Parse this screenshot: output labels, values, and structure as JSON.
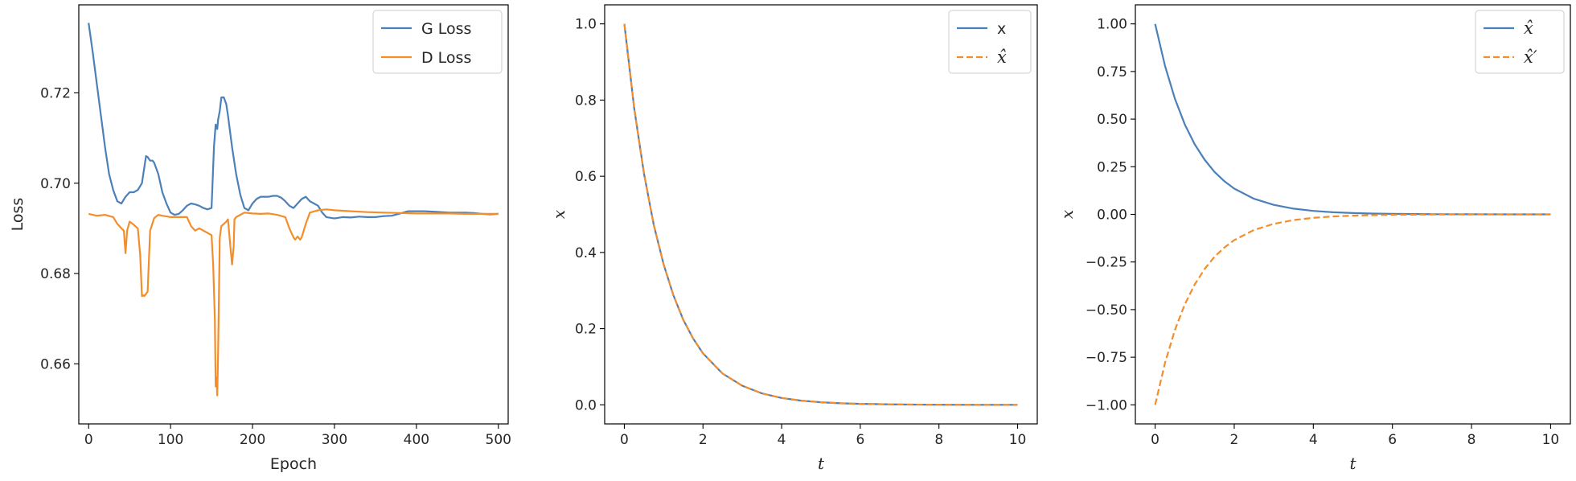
{
  "figure": {
    "panel_count": 3
  },
  "chart_data": [
    {
      "type": "line",
      "title": "",
      "xlabel": "Epoch",
      "ylabel": "Loss",
      "xlim": [
        -12,
        512
      ],
      "ylim": [
        0.6467,
        0.7395
      ],
      "xticks": [
        0,
        100,
        200,
        300,
        400,
        500
      ],
      "xtick_labels": [
        "0",
        "100",
        "200",
        "300",
        "400",
        "500"
      ],
      "yticks": [
        0.66,
        0.68,
        0.7,
        0.72
      ],
      "ytick_labels": [
        "0.66",
        "0.68",
        "0.70",
        "0.72"
      ],
      "grid": false,
      "legend": "top-right",
      "series": [
        {
          "name": "G Loss",
          "color": "#4c80b8",
          "style": "solid",
          "x": [
            0,
            5,
            10,
            15,
            20,
            25,
            30,
            35,
            40,
            45,
            50,
            55,
            60,
            65,
            70,
            72,
            75,
            78,
            80,
            85,
            90,
            95,
            100,
            105,
            110,
            115,
            120,
            125,
            130,
            135,
            140,
            145,
            150,
            153,
            155,
            157,
            158,
            160,
            162,
            165,
            168,
            170,
            175,
            180,
            185,
            190,
            195,
            200,
            205,
            210,
            215,
            220,
            225,
            230,
            235,
            240,
            245,
            250,
            255,
            260,
            265,
            270,
            275,
            280,
            285,
            290,
            300,
            310,
            320,
            330,
            340,
            350,
            360,
            370,
            380,
            390,
            400,
            410,
            420,
            430,
            440,
            450,
            460,
            470,
            480,
            490,
            500
          ],
          "y": [
            0.7355,
            0.729,
            0.722,
            0.715,
            0.708,
            0.702,
            0.6985,
            0.696,
            0.6955,
            0.697,
            0.698,
            0.698,
            0.6985,
            0.7,
            0.706,
            0.7058,
            0.705,
            0.705,
            0.7045,
            0.702,
            0.698,
            0.6955,
            0.6935,
            0.693,
            0.6932,
            0.694,
            0.695,
            0.6955,
            0.6953,
            0.695,
            0.6945,
            0.6942,
            0.6945,
            0.708,
            0.713,
            0.712,
            0.714,
            0.716,
            0.719,
            0.719,
            0.7175,
            0.715,
            0.708,
            0.702,
            0.6975,
            0.6945,
            0.694,
            0.6955,
            0.6965,
            0.697,
            0.697,
            0.697,
            0.6972,
            0.6972,
            0.6968,
            0.696,
            0.695,
            0.6945,
            0.6955,
            0.6965,
            0.697,
            0.696,
            0.6955,
            0.695,
            0.6935,
            0.6925,
            0.6922,
            0.6925,
            0.6924,
            0.6926,
            0.6925,
            0.6925,
            0.6927,
            0.6928,
            0.6933,
            0.6938,
            0.6938,
            0.6938,
            0.6937,
            0.6936,
            0.6935,
            0.6935,
            0.6935,
            0.6934,
            0.6932,
            0.6931,
            0.6932
          ]
        },
        {
          "name": "D Loss",
          "color": "#f28e2b",
          "style": "solid",
          "x": [
            0,
            10,
            20,
            30,
            35,
            40,
            43,
            45,
            47,
            50,
            55,
            60,
            63,
            65,
            67,
            68,
            70,
            72,
            75,
            80,
            85,
            90,
            100,
            110,
            120,
            125,
            130,
            135,
            140,
            145,
            150,
            152,
            154,
            155,
            156,
            157,
            158,
            159,
            160,
            162,
            165,
            168,
            170,
            172,
            175,
            177,
            178,
            180,
            185,
            190,
            200,
            210,
            220,
            230,
            240,
            245,
            250,
            252,
            255,
            258,
            260,
            265,
            270,
            280,
            290,
            300,
            320,
            340,
            360,
            380,
            400,
            420,
            440,
            460,
            480,
            500
          ],
          "y": [
            0.6932,
            0.6928,
            0.693,
            0.6925,
            0.691,
            0.69,
            0.6895,
            0.6845,
            0.6895,
            0.6915,
            0.6908,
            0.69,
            0.684,
            0.675,
            0.6752,
            0.675,
            0.6755,
            0.676,
            0.6895,
            0.6923,
            0.693,
            0.6928,
            0.6925,
            0.6925,
            0.6925,
            0.6905,
            0.6895,
            0.69,
            0.6895,
            0.689,
            0.6885,
            0.682,
            0.67,
            0.655,
            0.657,
            0.653,
            0.662,
            0.675,
            0.688,
            0.6905,
            0.691,
            0.6915,
            0.692,
            0.688,
            0.682,
            0.686,
            0.692,
            0.6925,
            0.693,
            0.6935,
            0.6933,
            0.6932,
            0.6933,
            0.693,
            0.6925,
            0.69,
            0.688,
            0.6875,
            0.6882,
            0.6875,
            0.688,
            0.691,
            0.6935,
            0.694,
            0.6942,
            0.694,
            0.6938,
            0.6936,
            0.6935,
            0.6934,
            0.6933,
            0.6933,
            0.6933,
            0.6932,
            0.6932,
            0.6932
          ]
        }
      ]
    },
    {
      "type": "line",
      "title": "",
      "xlabel": "t",
      "ylabel": "x",
      "xlim": [
        -0.5,
        10.5
      ],
      "ylim": [
        -0.05,
        1.05
      ],
      "xticks": [
        0,
        2,
        4,
        6,
        8,
        10
      ],
      "xtick_labels": [
        "0",
        "2",
        "4",
        "6",
        "8",
        "10"
      ],
      "yticks": [
        0.0,
        0.2,
        0.4,
        0.6,
        0.8,
        1.0
      ],
      "ytick_labels": [
        "0.0",
        "0.2",
        "0.4",
        "0.6",
        "0.8",
        "1.0"
      ],
      "grid": false,
      "legend": "top-right",
      "series": [
        {
          "name": "x",
          "color": "#4c80b8",
          "style": "solid",
          "x": [
            0,
            0.25,
            0.5,
            0.75,
            1,
            1.25,
            1.5,
            1.75,
            2,
            2.5,
            3,
            3.5,
            4,
            4.5,
            5,
            5.5,
            6,
            7,
            8,
            9,
            10
          ],
          "y": [
            1.0,
            0.779,
            0.607,
            0.472,
            0.368,
            0.287,
            0.223,
            0.174,
            0.135,
            0.082,
            0.05,
            0.03,
            0.018,
            0.011,
            0.0067,
            0.0041,
            0.0025,
            0.0009,
            0.0003,
            0.0001,
            0.0
          ]
        },
        {
          "name": "x̂",
          "color": "#f28e2b",
          "style": "dashed",
          "x": [
            0,
            0.25,
            0.5,
            0.75,
            1,
            1.25,
            1.5,
            1.75,
            2,
            2.5,
            3,
            3.5,
            4,
            4.5,
            5,
            5.5,
            6,
            7,
            8,
            9,
            10
          ],
          "y": [
            1.0,
            0.779,
            0.607,
            0.472,
            0.368,
            0.287,
            0.223,
            0.174,
            0.135,
            0.082,
            0.05,
            0.03,
            0.018,
            0.011,
            0.0067,
            0.0041,
            0.0025,
            0.0009,
            0.0003,
            0.0001,
            0.0
          ]
        }
      ]
    },
    {
      "type": "line",
      "title": "",
      "xlabel": "t",
      "ylabel": "x",
      "xlim": [
        -0.5,
        10.5
      ],
      "ylim": [
        -1.1,
        1.1
      ],
      "xticks": [
        0,
        2,
        4,
        6,
        8,
        10
      ],
      "xtick_labels": [
        "0",
        "2",
        "4",
        "6",
        "8",
        "10"
      ],
      "yticks": [
        -1.0,
        -0.75,
        -0.5,
        -0.25,
        0.0,
        0.25,
        0.5,
        0.75,
        1.0
      ],
      "ytick_labels": [
        "−1.00",
        "−0.75",
        "−0.50",
        "−0.25",
        "0.00",
        "0.25",
        "0.50",
        "0.75",
        "1.00"
      ],
      "grid": false,
      "legend": "top-right",
      "series": [
        {
          "name": "x̂",
          "color": "#4c80b8",
          "style": "solid",
          "x": [
            0,
            0.25,
            0.5,
            0.75,
            1,
            1.25,
            1.5,
            1.75,
            2,
            2.5,
            3,
            3.5,
            4,
            4.5,
            5,
            5.5,
            6,
            7,
            8,
            9,
            10
          ],
          "y": [
            1.0,
            0.779,
            0.607,
            0.472,
            0.368,
            0.287,
            0.223,
            0.174,
            0.135,
            0.082,
            0.05,
            0.03,
            0.018,
            0.011,
            0.0067,
            0.0041,
            0.0025,
            0.0009,
            0.0003,
            0.0001,
            0.0
          ]
        },
        {
          "name": "x̂′",
          "color": "#f28e2b",
          "style": "dashed",
          "x": [
            0,
            0.25,
            0.5,
            0.75,
            1,
            1.25,
            1.5,
            1.75,
            2,
            2.5,
            3,
            3.5,
            4,
            4.5,
            5,
            5.5,
            6,
            7,
            8,
            9,
            10
          ],
          "y": [
            -1.0,
            -0.779,
            -0.607,
            -0.472,
            -0.368,
            -0.287,
            -0.223,
            -0.174,
            -0.135,
            -0.082,
            -0.05,
            -0.03,
            -0.018,
            -0.011,
            -0.0067,
            -0.0041,
            -0.0025,
            -0.0009,
            -0.0003,
            -0.0001,
            0.0
          ]
        }
      ]
    }
  ]
}
